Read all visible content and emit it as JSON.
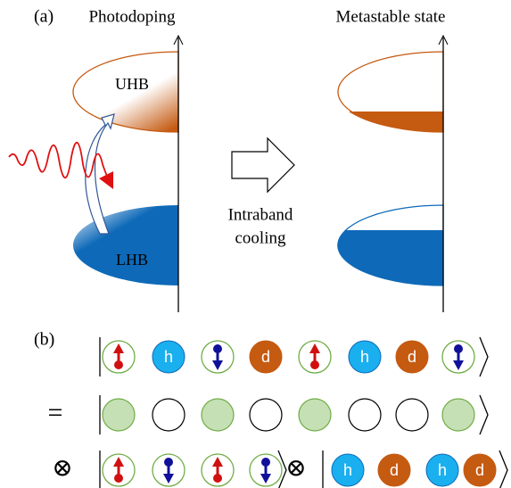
{
  "panel_a": {
    "label": "(a)",
    "left_title": "Photodoping",
    "right_title": "Metastable state",
    "uhb": "UHB",
    "lhb": "LHB",
    "arrow_label": [
      "Intraband",
      "cooling"
    ]
  },
  "panel_b": {
    "label": "(b)",
    "hole": "h",
    "doublon": "d",
    "equals": "=",
    "tensor": "⊗"
  }
}
